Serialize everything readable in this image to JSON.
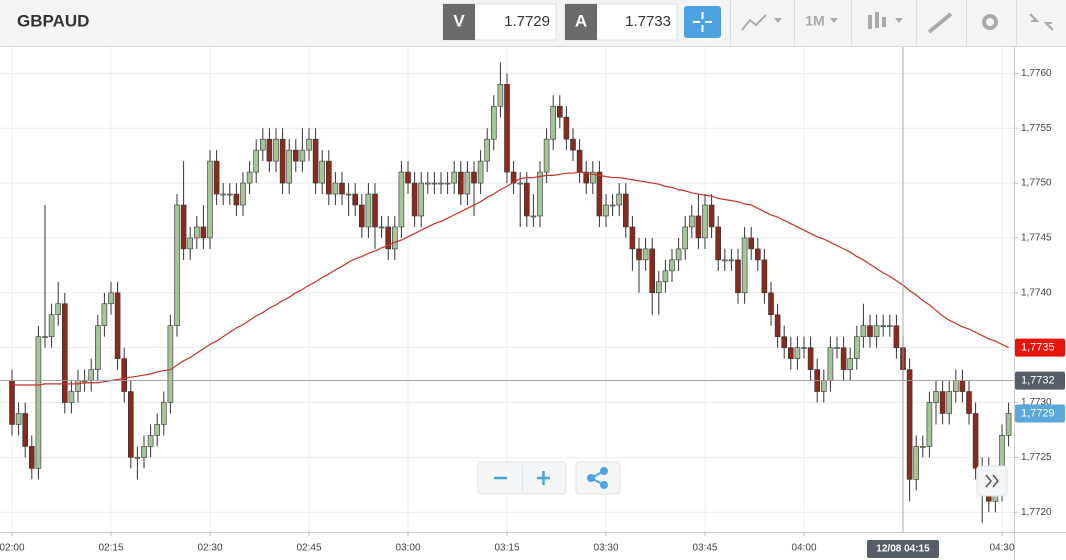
{
  "header": {
    "symbol": "GBPAUD",
    "bid_label": "V",
    "bid": "1.7729",
    "ask_label": "A",
    "ask": "1.7733",
    "timeframe": "1M"
  },
  "chart_data": {
    "type": "candlestick",
    "categories": [
      "02:00",
      null,
      null,
      null,
      null,
      null,
      null,
      null,
      null,
      null,
      null,
      null,
      null,
      null,
      null,
      "02:15",
      null,
      null,
      null,
      null,
      null,
      null,
      null,
      null,
      null,
      null,
      null,
      null,
      null,
      null,
      "02:30",
      null,
      null,
      null,
      null,
      null,
      null,
      null,
      null,
      null,
      null,
      null,
      null,
      null,
      null,
      "02:45",
      null,
      null,
      null,
      null,
      null,
      null,
      null,
      null,
      null,
      null,
      null,
      null,
      null,
      null,
      "03:00",
      null,
      null,
      null,
      null,
      null,
      null,
      null,
      null,
      null,
      null,
      null,
      null,
      null,
      null,
      "03:15",
      null,
      null,
      null,
      null,
      null,
      null,
      null,
      null,
      null,
      null,
      null,
      null,
      null,
      null,
      "03:30",
      null,
      null,
      null,
      null,
      null,
      null,
      null,
      null,
      null,
      null,
      null,
      null,
      null,
      null,
      "03:45",
      null,
      null,
      null,
      null,
      null,
      null,
      null,
      null,
      null,
      null,
      null,
      null,
      null,
      null,
      "04:00",
      null,
      null,
      null,
      null,
      null,
      null,
      null,
      null,
      null,
      null,
      null,
      null,
      null,
      null,
      "12/08 04:15",
      null,
      null,
      null,
      null,
      null,
      null,
      null,
      null,
      null,
      null,
      null,
      null,
      null,
      null,
      "04:30",
      null
    ],
    "open": [
      1.7732,
      1.7728,
      1.7729,
      1.7726,
      1.7724,
      1.7736,
      1.7736,
      1.7738,
      1.7739,
      1.773,
      1.7731,
      1.7732,
      1.7732,
      1.7733,
      1.7737,
      1.7739,
      1.774,
      1.7734,
      1.7731,
      1.7725,
      1.7725,
      1.7726,
      1.7727,
      1.7728,
      1.773,
      1.7737,
      1.7748,
      1.7744,
      1.7745,
      1.7746,
      1.7745,
      1.7752,
      1.7749,
      1.7749,
      1.7749,
      1.7748,
      1.775,
      1.7751,
      1.7753,
      1.7754,
      1.7752,
      1.7754,
      1.775,
      1.7753,
      1.7752,
      1.7753,
      1.7754,
      1.775,
      1.7752,
      1.7749,
      1.775,
      1.7749,
      1.7749,
      1.7748,
      1.7746,
      1.7749,
      1.7746,
      1.7746,
      1.7744,
      1.7746,
      1.7751,
      1.775,
      1.7747,
      1.775,
      1.775,
      1.775,
      1.775,
      1.775,
      1.7751,
      1.7749,
      1.7751,
      1.775,
      1.7752,
      1.7754,
      1.7757,
      1.7759,
      1.7751,
      1.775,
      1.775,
      1.7747,
      1.7747,
      1.7751,
      1.7754,
      1.7757,
      1.7756,
      1.7754,
      1.7753,
      1.7751,
      1.775,
      1.7751,
      1.7747,
      1.7748,
      1.7748,
      1.7749,
      1.7746,
      1.7744,
      1.7743,
      1.7744,
      1.774,
      1.7741,
      1.7742,
      1.7743,
      1.7744,
      1.7746,
      1.7747,
      1.7745,
      1.7748,
      1.7746,
      1.7743,
      1.7743,
      1.7743,
      1.774,
      1.7745,
      1.7744,
      1.7743,
      1.774,
      1.7738,
      1.7736,
      1.7735,
      1.7734,
      1.7735,
      1.7735,
      1.7733,
      1.7731,
      1.7732,
      1.7735,
      1.7735,
      1.7733,
      1.7734,
      1.7736,
      1.7737,
      1.7736,
      1.7737,
      1.7737,
      1.7737,
      1.7735,
      1.7733,
      1.7723,
      1.7726,
      1.7726,
      1.773,
      1.7731,
      1.7729,
      1.7731,
      1.7732,
      1.7731,
      1.7729,
      1.7724,
      1.7722,
      1.7721,
      1.7722,
      1.7727
    ],
    "high": [
      1.7733,
      1.773,
      1.773,
      1.7727,
      1.7737,
      1.7748,
      1.7739,
      1.7741,
      1.774,
      1.7732,
      1.7733,
      1.7733,
      1.7734,
      1.7738,
      1.774,
      1.7741,
      1.7741,
      1.7735,
      1.7732,
      1.7726,
      1.7727,
      1.7728,
      1.7729,
      1.7731,
      1.7738,
      1.7749,
      1.7752,
      1.7746,
      1.7747,
      1.7748,
      1.7753,
      1.7753,
      1.775,
      1.775,
      1.775,
      1.7751,
      1.7752,
      1.7754,
      1.7755,
      1.7755,
      1.7755,
      1.7755,
      1.7754,
      1.7754,
      1.7755,
      1.7755,
      1.7755,
      1.7753,
      1.7753,
      1.7751,
      1.7751,
      1.775,
      1.775,
      1.7749,
      1.775,
      1.775,
      1.7747,
      1.7747,
      1.7747,
      1.7752,
      1.7752,
      1.7751,
      1.7751,
      1.7751,
      1.7751,
      1.7751,
      1.7751,
      1.7752,
      1.7752,
      1.7752,
      1.7752,
      1.7753,
      1.7755,
      1.7758,
      1.7761,
      1.776,
      1.7752,
      1.7751,
      1.7751,
      1.7749,
      1.7752,
      1.7755,
      1.7758,
      1.7758,
      1.7757,
      1.7755,
      1.7754,
      1.7752,
      1.7752,
      1.7752,
      1.7749,
      1.7749,
      1.775,
      1.775,
      1.7747,
      1.7745,
      1.7745,
      1.7745,
      1.7742,
      1.7743,
      1.7744,
      1.7745,
      1.7747,
      1.7748,
      1.7749,
      1.7749,
      1.7749,
      1.7747,
      1.7744,
      1.7744,
      1.7744,
      1.7746,
      1.7746,
      1.7745,
      1.7744,
      1.7741,
      1.7739,
      1.7737,
      1.7736,
      1.7736,
      1.7736,
      1.7736,
      1.7734,
      1.7733,
      1.7736,
      1.7736,
      1.7736,
      1.7735,
      1.7737,
      1.7739,
      1.7738,
      1.7738,
      1.7738,
      1.7738,
      1.7738,
      1.7736,
      1.7734,
      1.7727,
      1.7727,
      1.7731,
      1.7732,
      1.7732,
      1.7732,
      1.7733,
      1.7733,
      1.7732,
      1.773,
      1.7725,
      1.7725,
      1.7723,
      1.7728,
      1.773
    ],
    "low": [
      1.7727,
      1.7727,
      1.7725,
      1.7723,
      1.7723,
      1.7735,
      1.7735,
      1.7737,
      1.7729,
      1.7729,
      1.773,
      1.7731,
      1.7731,
      1.7732,
      1.7736,
      1.7738,
      1.7733,
      1.773,
      1.7724,
      1.7723,
      1.7724,
      1.7725,
      1.7726,
      1.7727,
      1.7729,
      1.7736,
      1.7743,
      1.7743,
      1.7744,
      1.7744,
      1.7744,
      1.7748,
      1.7748,
      1.7748,
      1.7747,
      1.7747,
      1.7749,
      1.775,
      1.7752,
      1.7751,
      1.7751,
      1.7749,
      1.7749,
      1.7751,
      1.7751,
      1.7752,
      1.7749,
      1.7749,
      1.7748,
      1.7748,
      1.7748,
      1.7747,
      1.7747,
      1.7745,
      1.7745,
      1.7744,
      1.7745,
      1.7743,
      1.7743,
      1.7745,
      1.7749,
      1.7746,
      1.7746,
      1.7749,
      1.7749,
      1.7749,
      1.7749,
      1.7749,
      1.7748,
      1.7748,
      1.7747,
      1.7749,
      1.7751,
      1.7753,
      1.7756,
      1.775,
      1.7749,
      1.7746,
      1.7746,
      1.7746,
      1.7746,
      1.775,
      1.7753,
      1.7755,
      1.7753,
      1.7752,
      1.775,
      1.7749,
      1.7749,
      1.7746,
      1.7746,
      1.7747,
      1.7747,
      1.7745,
      1.7742,
      1.774,
      1.7742,
      1.7738,
      1.7738,
      1.774,
      1.7741,
      1.7742,
      1.7743,
      1.7745,
      1.7744,
      1.7744,
      1.7745,
      1.7742,
      1.7742,
      1.7742,
      1.7739,
      1.7739,
      1.7743,
      1.7742,
      1.7739,
      1.7737,
      1.7735,
      1.7734,
      1.7733,
      1.7733,
      1.7734,
      1.7732,
      1.773,
      1.773,
      1.7731,
      1.7734,
      1.7732,
      1.7732,
      1.7733,
      1.7735,
      1.7735,
      1.7735,
      1.7736,
      1.7736,
      1.7734,
      1.7732,
      1.7721,
      1.7722,
      1.7725,
      1.7725,
      1.7728,
      1.7728,
      1.7728,
      1.773,
      1.773,
      1.7728,
      1.7723,
      1.7719,
      1.772,
      1.772,
      1.7721,
      1.7726
    ],
    "close": [
      1.7728,
      1.7729,
      1.7726,
      1.7724,
      1.7736,
      1.7736,
      1.7738,
      1.7739,
      1.773,
      1.7731,
      1.7732,
      1.7732,
      1.7733,
      1.7737,
      1.7739,
      1.774,
      1.7734,
      1.7731,
      1.7725,
      1.7725,
      1.7726,
      1.7727,
      1.7728,
      1.773,
      1.7737,
      1.7748,
      1.7744,
      1.7745,
      1.7746,
      1.7745,
      1.7752,
      1.7749,
      1.7749,
      1.7749,
      1.7748,
      1.775,
      1.7751,
      1.7753,
      1.7754,
      1.7752,
      1.7754,
      1.775,
      1.7753,
      1.7752,
      1.7753,
      1.7754,
      1.775,
      1.7752,
      1.7749,
      1.775,
      1.7749,
      1.7749,
      1.7748,
      1.7746,
      1.7749,
      1.7746,
      1.7746,
      1.7744,
      1.7746,
      1.7751,
      1.775,
      1.7747,
      1.775,
      1.775,
      1.775,
      1.775,
      1.775,
      1.7751,
      1.7749,
      1.7751,
      1.775,
      1.7752,
      1.7754,
      1.7757,
      1.7759,
      1.7751,
      1.775,
      1.775,
      1.7747,
      1.7747,
      1.7751,
      1.7754,
      1.7757,
      1.7756,
      1.7754,
      1.7753,
      1.7751,
      1.775,
      1.7751,
      1.7747,
      1.7748,
      1.7748,
      1.7749,
      1.7746,
      1.7744,
      1.7743,
      1.7744,
      1.774,
      1.7741,
      1.7742,
      1.7743,
      1.7744,
      1.7746,
      1.7747,
      1.7745,
      1.7748,
      1.7746,
      1.7743,
      1.7743,
      1.7743,
      1.774,
      1.7745,
      1.7744,
      1.7743,
      1.774,
      1.7738,
      1.7736,
      1.7735,
      1.7734,
      1.7735,
      1.7735,
      1.7733,
      1.7731,
      1.7732,
      1.7735,
      1.7735,
      1.7733,
      1.7734,
      1.7736,
      1.7737,
      1.7736,
      1.7737,
      1.7737,
      1.7737,
      1.7735,
      1.7733,
      1.7723,
      1.7726,
      1.7726,
      1.773,
      1.7731,
      1.7729,
      1.7731,
      1.7732,
      1.7731,
      1.7729,
      1.7724,
      1.7722,
      1.7721,
      1.7722,
      1.7727,
      1.7729
    ],
    "up_color": "#a5c49a",
    "down_color": "#8a2a1e",
    "ma": {
      "color": "#c9302c",
      "values": [
        1.77316,
        1.77316,
        1.77316,
        1.77316,
        1.77316,
        1.77317,
        1.77317,
        1.77317,
        1.77317,
        1.77317,
        1.77317,
        1.77318,
        1.77318,
        1.77318,
        1.77319,
        1.7732,
        1.77321,
        1.77322,
        1.77323,
        1.77324,
        1.77325,
        1.77326,
        1.77328,
        1.77329,
        1.7733,
        1.77334,
        1.77338,
        1.77341,
        1.77345,
        1.77349,
        1.77353,
        1.77356,
        1.7736,
        1.77364,
        1.77368,
        1.77371,
        1.77375,
        1.77379,
        1.77382,
        1.77386,
        1.77389,
        1.77393,
        1.77396,
        1.774,
        1.77403,
        1.77407,
        1.7741,
        1.77414,
        1.77417,
        1.77421,
        1.77424,
        1.77428,
        1.77431,
        1.77433,
        1.77436,
        1.77438,
        1.77441,
        1.77443,
        1.77446,
        1.77448,
        1.77451,
        1.77454,
        1.77457,
        1.7746,
        1.77463,
        1.77465,
        1.77468,
        1.77471,
        1.77474,
        1.77477,
        1.7748,
        1.77483,
        1.77487,
        1.7749,
        1.77494,
        1.77497,
        1.77501,
        1.77504,
        1.77505,
        1.77505,
        1.77506,
        1.77507,
        1.77507,
        1.77508,
        1.77509,
        1.77509,
        1.7751,
        1.77509,
        1.77508,
        1.77507,
        1.77506,
        1.77505,
        1.77505,
        1.77504,
        1.77503,
        1.77502,
        1.77501,
        1.775,
        1.77499,
        1.77497,
        1.77496,
        1.77494,
        1.77493,
        1.77491,
        1.7749,
        1.77489,
        1.77488,
        1.77486,
        1.77485,
        1.77484,
        1.77483,
        1.77481,
        1.7748,
        1.77477,
        1.77474,
        1.77471,
        1.77469,
        1.77466,
        1.77463,
        1.7746,
        1.77457,
        1.77454,
        1.77451,
        1.77449,
        1.77446,
        1.77443,
        1.7744,
        1.77437,
        1.77433,
        1.7743,
        1.77426,
        1.77422,
        1.77418,
        1.77415,
        1.77411,
        1.77407,
        1.77402,
        1.77398,
        1.77393,
        1.77389,
        1.77384,
        1.77379,
        1.77375,
        1.77372,
        1.77369,
        1.77367,
        1.77364,
        1.77361,
        1.77358,
        1.77356,
        1.77353,
        1.7735
      ]
    },
    "ylim": [
      1.77182,
      1.77624
    ],
    "yticks": [
      {
        "value": 1.772,
        "label": "1,7720"
      },
      {
        "value": 1.7725,
        "label": "1,7725"
      },
      {
        "value": 1.773,
        "label": "1,7730"
      },
      {
        "value": 1.7735,
        "label": "1,7735"
      },
      {
        "value": 1.774,
        "label": "1,7740"
      },
      {
        "value": 1.7745,
        "label": "1,7745"
      },
      {
        "value": 1.775,
        "label": "1,7750"
      },
      {
        "value": 1.7755,
        "label": "1,7755"
      },
      {
        "value": 1.776,
        "label": "1,7760"
      }
    ],
    "grid": true,
    "price_tags": [
      {
        "value": 1.7735,
        "label": "1,7735",
        "color": "#e8140c"
      },
      {
        "value": 1.7729,
        "label": "1,7729",
        "color": "#5aa7dc"
      }
    ],
    "crosshair": {
      "x": "12/08 04:15",
      "y": {
        "value": 1.7732,
        "label": "1,7732"
      },
      "color": "#555e66"
    }
  }
}
